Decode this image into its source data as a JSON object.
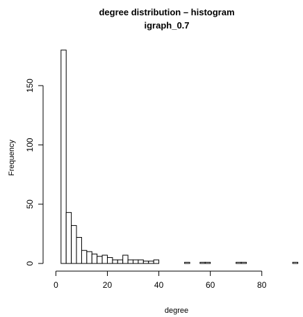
{
  "chart_data": {
    "type": "bar",
    "title": "degree distribution – histogram",
    "subtitle": "igraph_0.7",
    "xlabel": "degree",
    "ylabel": "Frequency",
    "xlim": [
      -2,
      96
    ],
    "ylim": [
      0,
      180
    ],
    "x_ticks": [
      0,
      20,
      40,
      60,
      80
    ],
    "y_ticks": [
      0,
      50,
      100,
      150
    ],
    "bin_width": 2,
    "bin_start": 2,
    "values": [
      180,
      43,
      32,
      22,
      11,
      10,
      8,
      6,
      7,
      5,
      3,
      3,
      7,
      3,
      3,
      3,
      2,
      2,
      3,
      0,
      0,
      0,
      0,
      0,
      1,
      0,
      0,
      1,
      1,
      0,
      0,
      0,
      0,
      0,
      1,
      1,
      0,
      0,
      0,
      0,
      0,
      0,
      0,
      0,
      0,
      1
    ],
    "colors": {
      "bar_fill": "#ffffff",
      "bar_stroke": "#000000",
      "axis": "#000000"
    }
  }
}
